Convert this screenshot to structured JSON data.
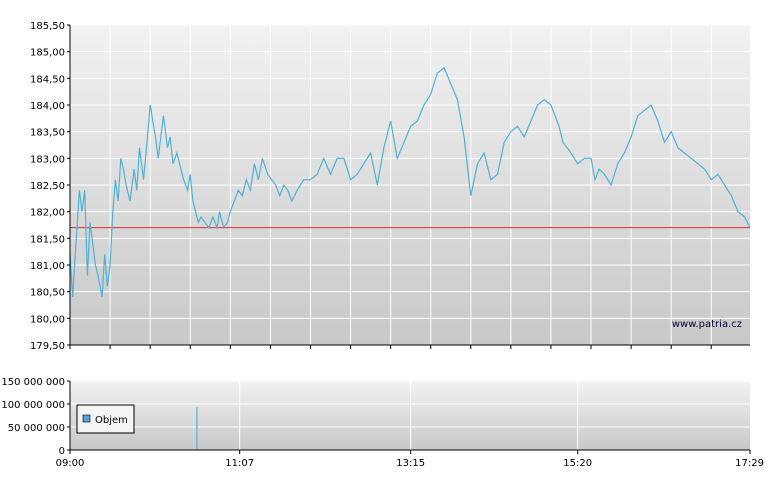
{
  "chart_data": [
    {
      "type": "line",
      "watermark": "www.patria.cz",
      "y_ticks": [
        "185,50",
        "185,00",
        "184,50",
        "184,00",
        "183,50",
        "183,00",
        "182,50",
        "182,00",
        "181,50",
        "181,00",
        "180,50",
        "180,00",
        "179,50"
      ],
      "ylim": [
        179.5,
        185.5
      ],
      "grid": true,
      "reference_line": 181.7,
      "colors": {
        "line": "#4fb1d6",
        "reference": "#e0302a",
        "grid": "#ffffff"
      },
      "series": [
        {
          "x": [
            "09:00",
            "09:02",
            "09:04",
            "09:07",
            "09:09",
            "09:11",
            "09:13",
            "09:15",
            "09:17",
            "09:19",
            "09:21",
            "09:24",
            "09:26",
            "09:28",
            "09:30",
            "09:32",
            "09:34",
            "09:36",
            "09:38",
            "09:40",
            "09:42",
            "09:45",
            "09:48",
            "09:50",
            "09:52",
            "09:55",
            "09:58",
            "10:00",
            "10:02",
            "10:04",
            "10:06",
            "10:08",
            "10:10",
            "10:13",
            "10:15",
            "10:17",
            "10:20",
            "10:23",
            "10:25",
            "10:28",
            "10:30",
            "10:32",
            "10:34",
            "10:36",
            "10:38",
            "10:41",
            "10:44",
            "10:47",
            "10:50",
            "10:52",
            "10:55",
            "10:58",
            "11:00",
            "11:03",
            "11:06",
            "11:09",
            "11:12",
            "11:15",
            "11:18",
            "11:21",
            "11:24",
            "11:28",
            "11:31",
            "11:34",
            "11:37",
            "11:40",
            "11:43",
            "11:46",
            "11:50",
            "11:55",
            "12:00",
            "12:05",
            "12:10",
            "12:15",
            "12:20",
            "12:25",
            "12:30",
            "12:35",
            "12:40",
            "12:45",
            "12:50",
            "12:55",
            "13:00",
            "13:05",
            "13:10",
            "13:15",
            "13:20",
            "13:25",
            "13:30",
            "13:35",
            "13:40",
            "13:45",
            "13:50",
            "13:55",
            "14:00",
            "14:05",
            "14:10",
            "14:15",
            "14:20",
            "14:25",
            "14:30",
            "14:35",
            "14:40",
            "14:45",
            "14:50",
            "14:55",
            "15:00",
            "15:03",
            "15:06",
            "15:09",
            "15:12",
            "15:15",
            "15:20",
            "15:25",
            "15:30",
            "15:33",
            "15:36",
            "15:40",
            "15:45",
            "15:50",
            "15:55",
            "16:00",
            "16:05",
            "16:10",
            "16:15",
            "16:20",
            "16:25",
            "16:30",
            "16:35",
            "16:40",
            "16:45",
            "16:50",
            "16:55",
            "17:00",
            "17:05",
            "17:10",
            "17:15",
            "17:20",
            "17:25",
            "17:29"
          ],
          "y": [
            181.2,
            180.4,
            181.2,
            182.4,
            182.0,
            182.4,
            180.8,
            181.8,
            181.4,
            181.0,
            180.8,
            180.4,
            181.2,
            180.6,
            181.0,
            182.0,
            182.6,
            182.2,
            183.0,
            182.8,
            182.5,
            182.2,
            182.8,
            182.4,
            183.2,
            182.6,
            183.4,
            184.0,
            183.7,
            183.4,
            183.0,
            183.4,
            183.8,
            183.2,
            183.4,
            182.9,
            183.1,
            182.8,
            182.6,
            182.4,
            182.7,
            182.2,
            182.0,
            181.8,
            181.9,
            181.8,
            181.7,
            181.9,
            181.7,
            182.0,
            181.7,
            181.8,
            182.0,
            182.2,
            182.4,
            182.3,
            182.6,
            182.4,
            182.9,
            182.6,
            183.0,
            182.7,
            182.6,
            182.5,
            182.3,
            182.5,
            182.4,
            182.2,
            182.4,
            182.6,
            182.6,
            182.7,
            183.0,
            182.7,
            183.0,
            183.0,
            182.6,
            182.7,
            182.9,
            183.1,
            182.5,
            183.2,
            183.7,
            183.0,
            183.3,
            183.6,
            183.7,
            184.0,
            184.2,
            184.6,
            184.7,
            184.4,
            184.1,
            183.4,
            182.3,
            182.9,
            183.1,
            182.6,
            182.7,
            183.3,
            183.5,
            183.6,
            183.4,
            183.7,
            184.0,
            184.1,
            184.0,
            183.8,
            183.6,
            183.3,
            183.2,
            183.1,
            182.9,
            183.0,
            183.0,
            182.6,
            182.8,
            182.7,
            182.5,
            182.9,
            183.1,
            183.4,
            183.8,
            183.9,
            184.0,
            183.7,
            183.3,
            183.5,
            183.2,
            183.1,
            183.0,
            182.9,
            182.8,
            182.6,
            182.7,
            182.5,
            182.3,
            182.0,
            181.9,
            181.7
          ],
          "time_range": [
            "09:00",
            "17:29"
          ]
        }
      ]
    },
    {
      "type": "bar",
      "y_ticks": [
        "150 000 000",
        "100 000 000",
        "50 000 000",
        "0"
      ],
      "ylim": [
        0,
        150000000
      ],
      "x_ticks": [
        "09:00",
        "11:07",
        "13:15",
        "15:20",
        "17:29"
      ],
      "legend": {
        "label": "Objem",
        "placement": "left",
        "color": "#4fa3d6"
      },
      "grid": true,
      "series": [
        {
          "name": "Objem",
          "x": [
            "10:35"
          ],
          "values": [
            93000000
          ]
        }
      ]
    }
  ]
}
